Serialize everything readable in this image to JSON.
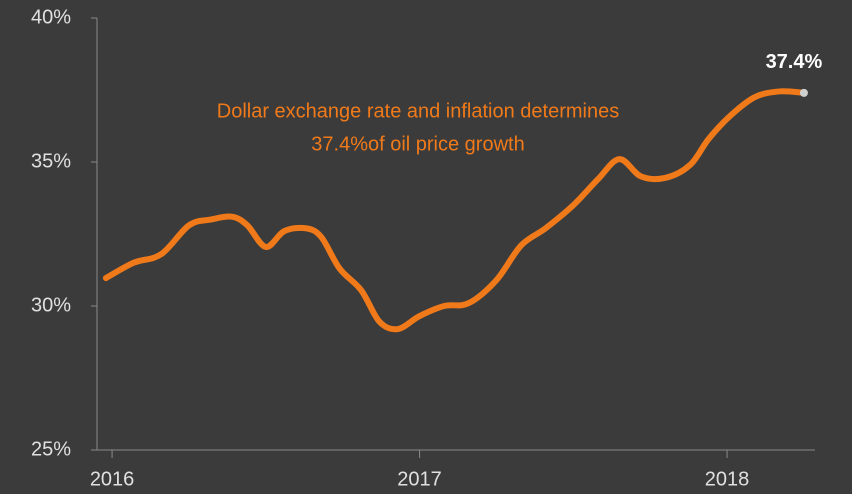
{
  "chart_data": {
    "type": "line",
    "x": [
      2015.98,
      2016.07,
      2016.16,
      2016.25,
      2016.32,
      2016.39,
      2016.44,
      2016.5,
      2016.56,
      2016.63,
      2016.68,
      2016.74,
      2016.81,
      2016.87,
      2016.93,
      2017.0,
      2017.08,
      2017.16,
      2017.25,
      2017.33,
      2017.41,
      2017.5,
      2017.58,
      2017.65,
      2017.72,
      2017.8,
      2017.88,
      2017.94,
      2018.01,
      2018.09,
      2018.17,
      2018.25
    ],
    "series": [
      {
        "color": "#f07a1a",
        "values": [
          30.97,
          31.5,
          31.8,
          32.8,
          33.0,
          33.1,
          32.8,
          32.05,
          32.6,
          32.7,
          32.4,
          31.3,
          30.55,
          29.45,
          29.2,
          29.65,
          30.0,
          30.1,
          30.9,
          32.1,
          32.7,
          33.5,
          34.4,
          35.1,
          34.5,
          34.45,
          34.9,
          35.8,
          36.6,
          37.25,
          37.45,
          37.4
        ],
        "value_labels": [
          null,
          null,
          null,
          null,
          null,
          null,
          null,
          null,
          null,
          null,
          null,
          null,
          null,
          null,
          null,
          null,
          null,
          null,
          null,
          null,
          null,
          null,
          null,
          null,
          null,
          null,
          null,
          null,
          null,
          null,
          null,
          "37.4%"
        ]
      }
    ],
    "annotation": [
      "Dollar exchange rate and inflation determines",
      "37.4%of oil price growth"
    ],
    "xlim": [
      2015.951,
      2018.286
    ],
    "xticks": [
      2016,
      2017,
      2018
    ],
    "ylim": [
      25,
      40
    ],
    "yticks": [
      {
        "value": 25,
        "label": "25%"
      },
      {
        "value": 30,
        "label": "30%"
      },
      {
        "value": 35,
        "label": "35%"
      },
      {
        "value": 40,
        "label": "40%"
      }
    ]
  }
}
